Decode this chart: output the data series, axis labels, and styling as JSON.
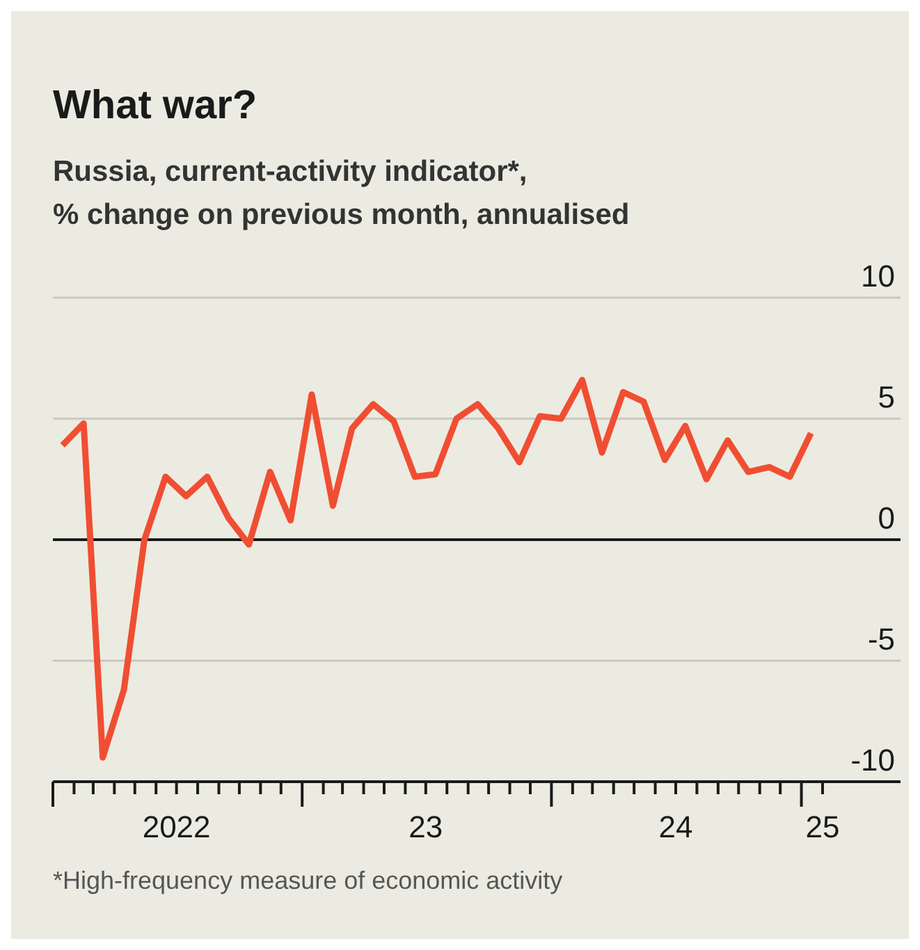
{
  "chart_data": {
    "type": "line",
    "title": "What war?",
    "subtitle": "Russia, current-activity indicator*,\n% change on previous month, annualised",
    "x": [
      "2022-01-15",
      "2022-02-15",
      "2022-03-15",
      "2022-04-15",
      "2022-05-15",
      "2022-06-15",
      "2022-07-15",
      "2022-08-15",
      "2022-09-15",
      "2022-10-15",
      "2022-11-15",
      "2022-12-15",
      "2023-01-15",
      "2023-02-15",
      "2023-03-15",
      "2023-04-15",
      "2023-05-15",
      "2023-06-15",
      "2023-07-15",
      "2023-08-15",
      "2023-09-15",
      "2023-10-15",
      "2023-11-15",
      "2023-12-15",
      "2024-01-15",
      "2024-02-15",
      "2024-03-15",
      "2024-04-15",
      "2024-05-15",
      "2024-06-15",
      "2024-07-15",
      "2024-08-15",
      "2024-09-15",
      "2024-10-15",
      "2024-11-15",
      "2024-12-15",
      "2025-01-15"
    ],
    "series": [
      {
        "color": "#f04e33",
        "values": [
          3.9,
          4.8,
          -9.0,
          -6.2,
          0,
          2.6,
          1.8,
          2.6,
          0.9,
          -0.2,
          2.8,
          0.8,
          6.0,
          1.4,
          4.6,
          5.6,
          4.9,
          2.6,
          2.7,
          5.0,
          5.6,
          4.6,
          3.2,
          5.1,
          5.0,
          6.6,
          3.6,
          6.1,
          5.7,
          3.3,
          4.7,
          2.5,
          4.1,
          2.8,
          3.0,
          2.6,
          4.4
        ]
      }
    ],
    "xlim": [
      "2022-01",
      "2025-02"
    ],
    "xticks": [
      {
        "value": "2022-01",
        "label": null
      },
      {
        "value": "2022-02",
        "label": null
      },
      {
        "value": "2022-03",
        "label": null
      },
      {
        "value": "2022-04",
        "label": null
      },
      {
        "value": "2022-05",
        "label": null
      },
      {
        "value": "2022-06",
        "label": null
      },
      {
        "value": "2022-07",
        "label": "2022"
      },
      {
        "value": "2022-08",
        "label": null
      },
      {
        "value": "2022-09",
        "label": null
      },
      {
        "value": "2022-10",
        "label": null
      },
      {
        "value": "2022-11",
        "label": null
      },
      {
        "value": "2022-12",
        "label": null
      },
      {
        "value": "2023-01",
        "label": null
      },
      {
        "value": "2023-02",
        "label": null
      },
      {
        "value": "2023-03",
        "label": null
      },
      {
        "value": "2023-04",
        "label": null
      },
      {
        "value": "2023-05",
        "label": null
      },
      {
        "value": "2023-06",
        "label": null
      },
      {
        "value": "2023-07",
        "label": "23"
      },
      {
        "value": "2023-08",
        "label": null
      },
      {
        "value": "2023-09",
        "label": null
      },
      {
        "value": "2023-10",
        "label": null
      },
      {
        "value": "2023-11",
        "label": null
      },
      {
        "value": "2023-12",
        "label": null
      },
      {
        "value": "2024-01",
        "label": null
      },
      {
        "value": "2024-02",
        "label": null
      },
      {
        "value": "2024-03",
        "label": null
      },
      {
        "value": "2024-04",
        "label": null
      },
      {
        "value": "2024-05",
        "label": null
      },
      {
        "value": "2024-06",
        "label": null
      },
      {
        "value": "2024-07",
        "label": "24"
      },
      {
        "value": "2024-08",
        "label": null
      },
      {
        "value": "2024-09",
        "label": null
      },
      {
        "value": "2024-10",
        "label": null
      },
      {
        "value": "2024-11",
        "label": null
      },
      {
        "value": "2024-12",
        "label": null
      },
      {
        "value": "2025-01",
        "label": null
      },
      {
        "value": "2025-02",
        "label": "25"
      }
    ],
    "ylim": [
      -10,
      10
    ],
    "yticks": [
      -10,
      -5,
      0,
      5,
      10
    ],
    "grid": "y",
    "legend": false,
    "marker": "none",
    "line_style": "solid",
    "ref_lines": [
      {
        "axis": "y",
        "value": 0,
        "label": null,
        "color": "#1a1a1a"
      }
    ],
    "annotations": [
      "*High-frequency measure of economic activity"
    ]
  }
}
